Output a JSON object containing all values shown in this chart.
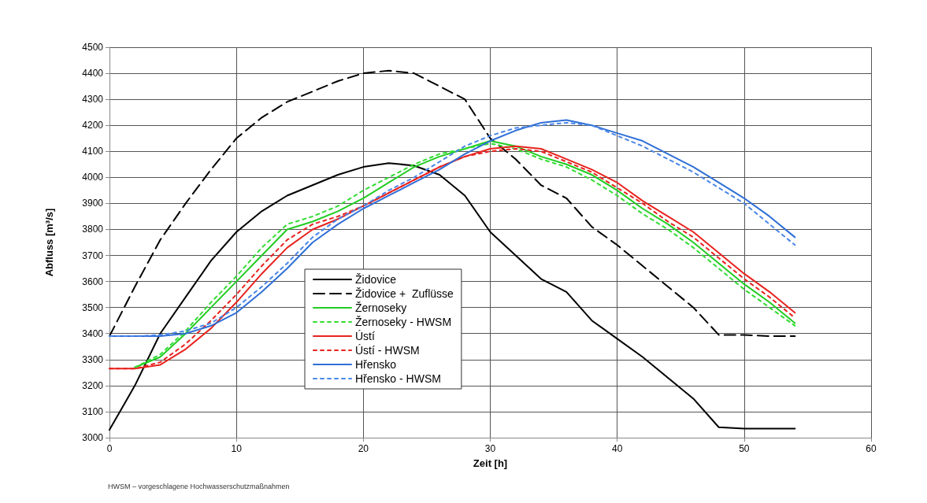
{
  "chart_data": {
    "type": "line",
    "xlabel": "Zeit [h]",
    "ylabel": "Abfluss [m³/s]",
    "x": [
      0,
      2,
      4,
      6,
      8,
      10,
      12,
      14,
      16,
      18,
      20,
      22,
      24,
      26,
      28,
      30,
      32,
      34,
      36,
      38,
      40,
      42,
      44,
      46,
      48,
      50,
      52,
      54
    ],
    "xlim": [
      0,
      60
    ],
    "xticks": [
      0,
      10,
      20,
      30,
      40,
      50,
      60
    ],
    "ylim": [
      3000,
      4500
    ],
    "yticks": [
      3000,
      3100,
      3200,
      3300,
      3400,
      3500,
      3600,
      3700,
      3800,
      3900,
      4000,
      4100,
      4200,
      4300,
      4400,
      4500
    ],
    "grid": true,
    "legend": "bottom",
    "marker": "none",
    "annotations": [
      "HWSM – vorgeschlagene Hochwasserschutzmaßnahmen"
    ],
    "series": [
      {
        "name": "Židovice",
        "color": "#000000",
        "line_style": "solid",
        "values": [
          3030,
          3200,
          3400,
          3540,
          3680,
          3790,
          3870,
          3930,
          3970,
          4010,
          4040,
          4055,
          4045,
          4010,
          3930,
          3790,
          3700,
          3610,
          3560,
          3450,
          3380,
          3310,
          3230,
          3150,
          3040,
          3035,
          3035,
          3035
        ]
      },
      {
        "name": "Židovice +  Zuflüsse",
        "color": "#000000",
        "line_style": "dashed",
        "values": [
          3390,
          3580,
          3760,
          3900,
          4030,
          4150,
          4230,
          4290,
          4330,
          4370,
          4400,
          4410,
          4400,
          4350,
          4300,
          4150,
          4070,
          3970,
          3920,
          3810,
          3740,
          3660,
          3580,
          3500,
          3395,
          3395,
          3390,
          3390
        ]
      },
      {
        "name": "Žernoseky",
        "color": "#22cc22",
        "line_style": "solid",
        "values": [
          null,
          3270,
          3310,
          3400,
          3500,
          3600,
          3700,
          3800,
          3830,
          3870,
          3920,
          3980,
          4040,
          4080,
          4110,
          4140,
          4120,
          4080,
          4050,
          4010,
          3950,
          3880,
          3820,
          3750,
          3670,
          3590,
          3520,
          3440
        ]
      },
      {
        "name": "Žernoseky - HWSM",
        "color": "#33dd33",
        "line_style": "dotted",
        "values": [
          null,
          3270,
          3320,
          3410,
          3520,
          3620,
          3730,
          3820,
          3850,
          3890,
          3950,
          4000,
          4050,
          4090,
          4110,
          4130,
          4110,
          4070,
          4040,
          3990,
          3930,
          3860,
          3800,
          3730,
          3650,
          3570,
          3500,
          3430
        ]
      },
      {
        "name": "Ústí",
        "color": "#e8231f",
        "line_style": "solid",
        "values": [
          3265,
          3265,
          3280,
          3340,
          3420,
          3520,
          3630,
          3730,
          3800,
          3840,
          3890,
          3940,
          3990,
          4040,
          4080,
          4110,
          4120,
          4110,
          4070,
          4030,
          3980,
          3910,
          3850,
          3790,
          3710,
          3630,
          3560,
          3480
        ]
      },
      {
        "name": "Ústí - HWSM",
        "color": "#e8231f",
        "line_style": "dotted",
        "values": [
          3265,
          3265,
          3290,
          3360,
          3450,
          3550,
          3660,
          3760,
          3820,
          3850,
          3890,
          3940,
          3990,
          4040,
          4080,
          4100,
          4110,
          4100,
          4060,
          4020,
          3960,
          3900,
          3830,
          3770,
          3690,
          3610,
          3540,
          3460
        ]
      },
      {
        "name": "Hřensko",
        "color": "#2f6fd6",
        "line_style": "solid",
        "values": [
          3390,
          3390,
          3390,
          3400,
          3430,
          3480,
          3560,
          3650,
          3750,
          3820,
          3880,
          3930,
          3980,
          4030,
          4090,
          4140,
          4180,
          4210,
          4220,
          4200,
          4170,
          4140,
          4090,
          4040,
          3980,
          3920,
          3850,
          3770
        ]
      },
      {
        "name": "Hřensko - HWSM",
        "color": "#4a86e8",
        "line_style": "dotted",
        "values": [
          3390,
          3390,
          3395,
          3410,
          3440,
          3500,
          3580,
          3670,
          3770,
          3840,
          3890,
          3950,
          4000,
          4060,
          4120,
          4160,
          4190,
          4200,
          4210,
          4200,
          4160,
          4120,
          4070,
          4020,
          3960,
          3900,
          3820,
          3740
        ]
      }
    ]
  }
}
